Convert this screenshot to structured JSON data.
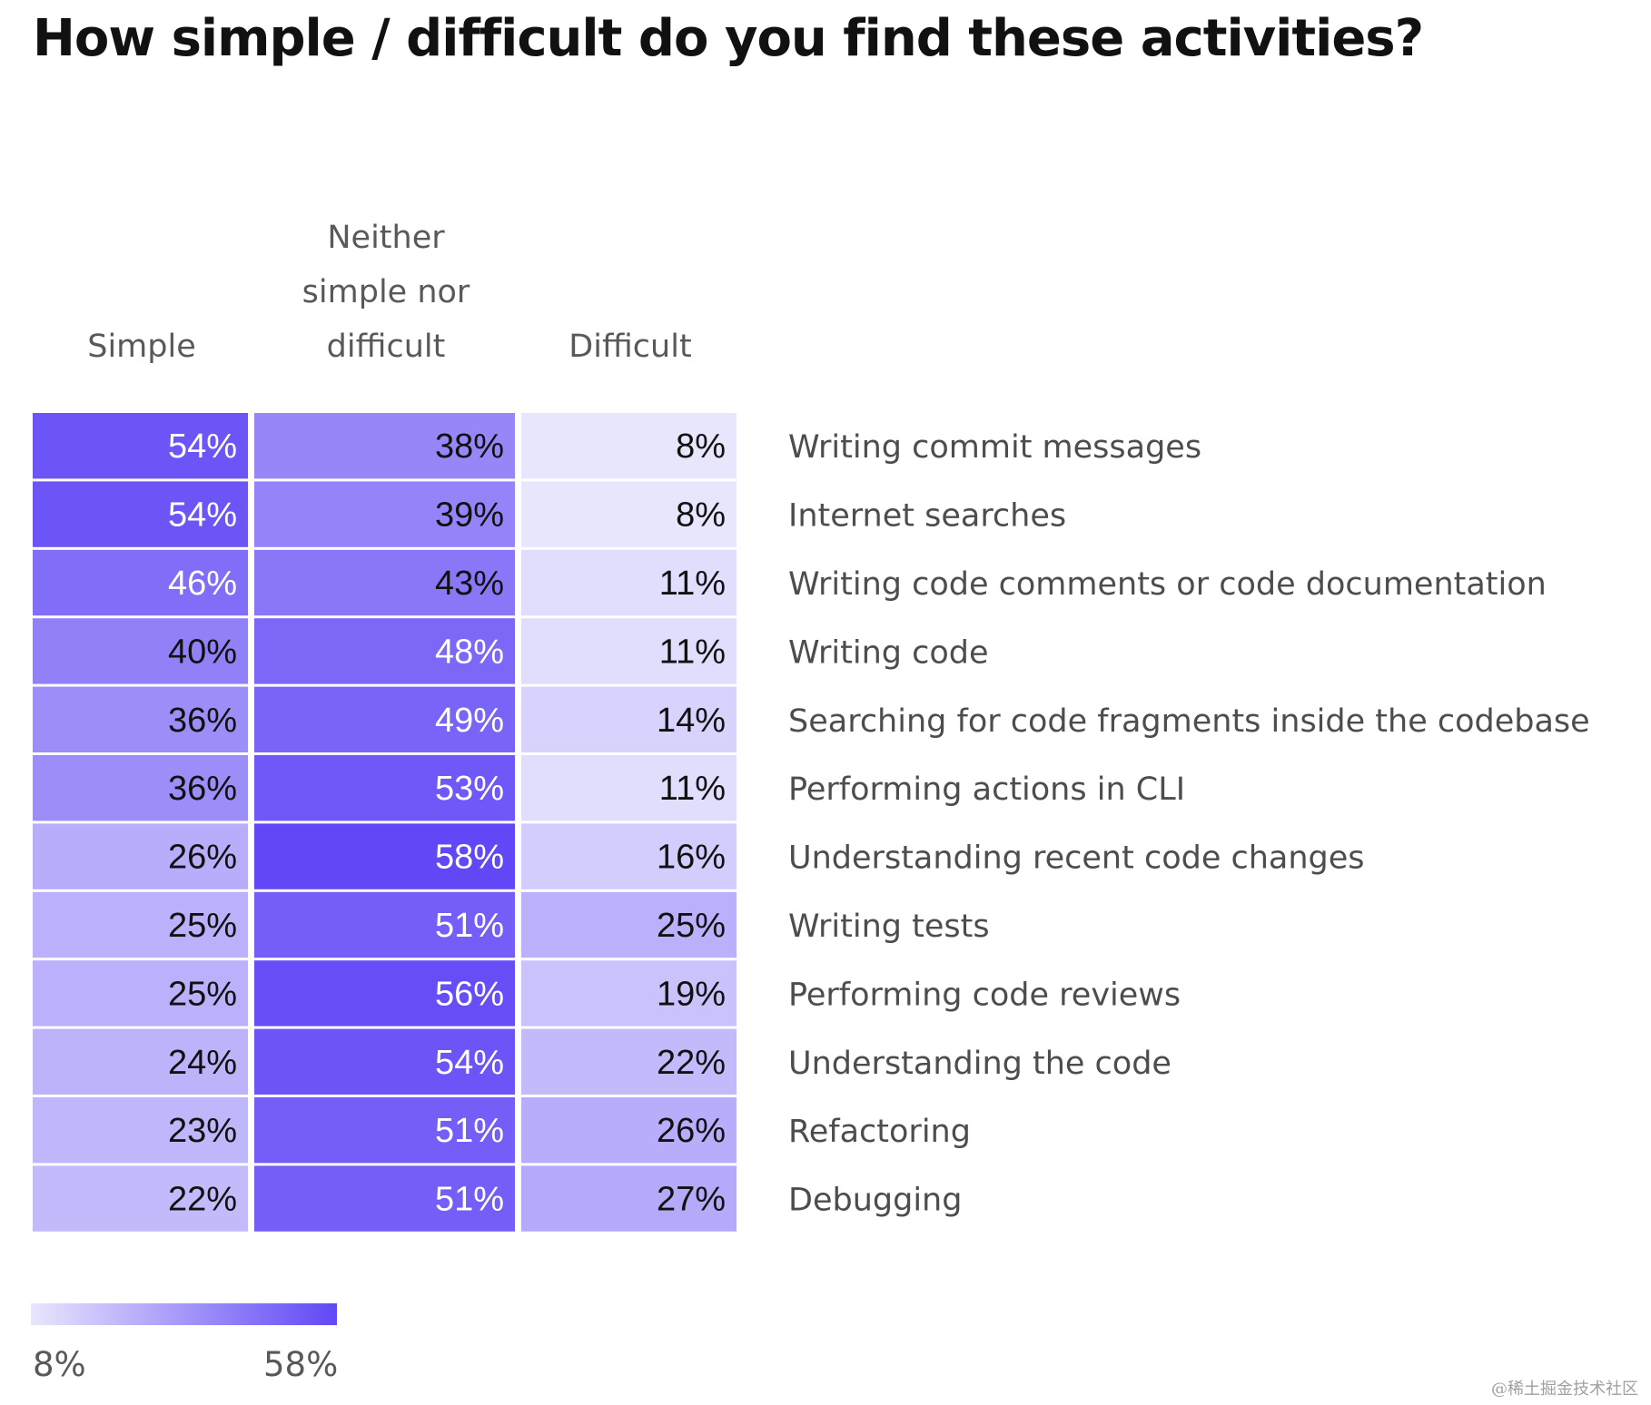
{
  "chart_data": {
    "type": "heatmap",
    "title": "How simple / difficult do you find these activities?",
    "columns": [
      "Simple",
      "Neither simple nor difficult",
      "Difficult"
    ],
    "column_header_lines": [
      [
        "Simple"
      ],
      [
        "Neither",
        "simple nor",
        "difficult"
      ],
      [
        "Difficult"
      ]
    ],
    "rows": [
      {
        "label": "Writing commit messages",
        "values": [
          54,
          38,
          8
        ]
      },
      {
        "label": "Internet searches",
        "values": [
          54,
          39,
          8
        ]
      },
      {
        "label": "Writing code comments or code documentation",
        "values": [
          46,
          43,
          11
        ]
      },
      {
        "label": "Writing code",
        "values": [
          40,
          48,
          11
        ]
      },
      {
        "label": "Searching for code fragments inside the codebase",
        "values": [
          36,
          49,
          14
        ]
      },
      {
        "label": "Performing actions in CLI",
        "values": [
          36,
          53,
          11
        ]
      },
      {
        "label": "Understanding recent code changes",
        "values": [
          26,
          58,
          16
        ]
      },
      {
        "label": "Writing tests",
        "values": [
          25,
          51,
          25
        ]
      },
      {
        "label": "Performing code reviews",
        "values": [
          25,
          56,
          19
        ]
      },
      {
        "label": "Understanding the code",
        "values": [
          24,
          54,
          22
        ]
      },
      {
        "label": "Refactoring",
        "values": [
          23,
          51,
          26
        ]
      },
      {
        "label": "Debugging",
        "values": [
          22,
          51,
          27
        ]
      }
    ],
    "value_suffix": "%",
    "color_scale": {
      "min": 8,
      "max": 58,
      "min_label": "8%",
      "max_label": "58%",
      "min_color": "#e8e6fd",
      "max_color": "#6048f6"
    }
  },
  "watermark": "@稀土掘金技术社区"
}
